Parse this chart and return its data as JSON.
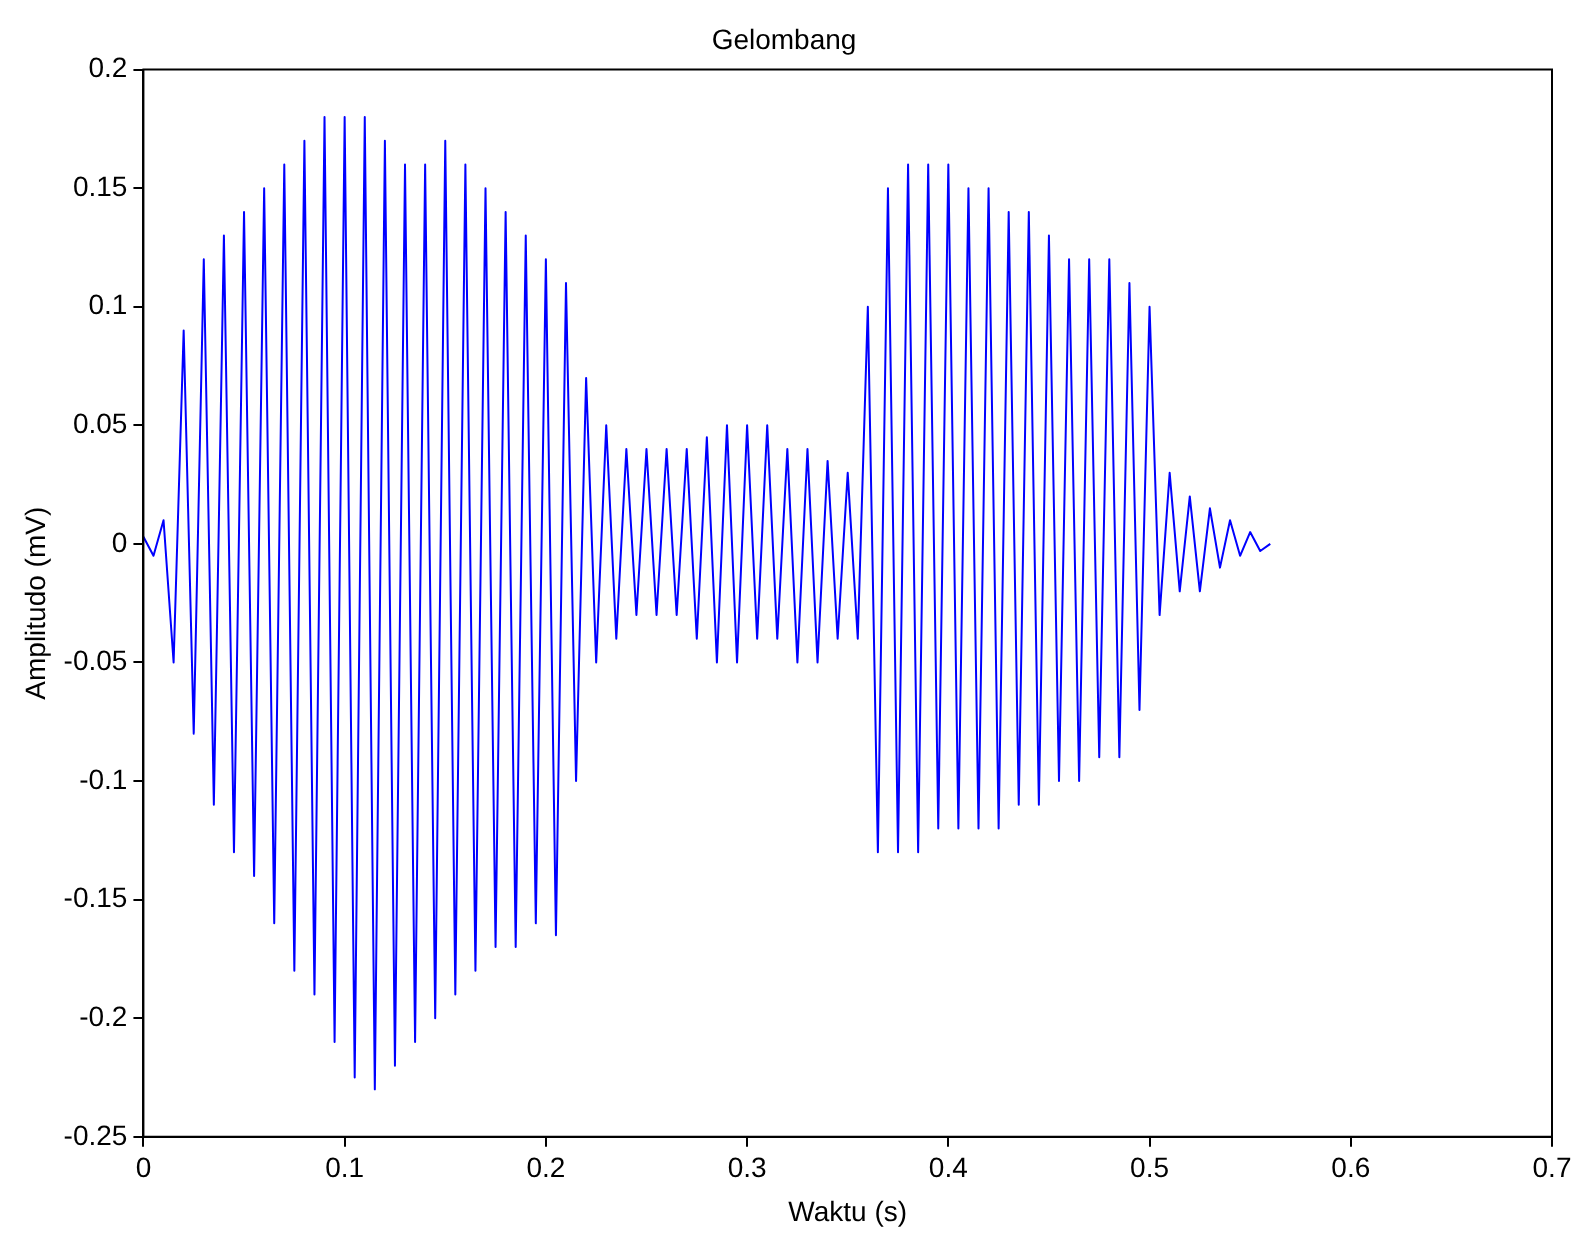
{
  "chart_data": {
    "type": "line",
    "title": "Gelombang",
    "xlabel": "Waktu (s)",
    "ylabel": "Amplitudo (mV)",
    "xlim": [
      0,
      0.7
    ],
    "xticks": [
      0,
      0.1,
      0.2,
      0.3,
      0.4,
      0.5,
      0.6,
      0.7
    ],
    "ylim": [
      -0.25,
      0.2
    ],
    "yticks": [
      -0.25,
      -0.2,
      -0.15,
      -0.1,
      -0.05,
      0,
      0.05,
      0.1,
      0.15,
      0.2
    ],
    "grid": false,
    "legend": false,
    "marker": "none",
    "line_style": "solid",
    "series": [
      {
        "color": "#0000ff",
        "x": [
          0,
          0.005,
          0.01,
          0.015,
          0.02,
          0.025,
          0.03,
          0.035,
          0.04,
          0.045,
          0.05,
          0.055,
          0.06,
          0.065,
          0.07,
          0.075,
          0.08,
          0.085,
          0.09,
          0.095,
          0.1,
          0.105,
          0.11,
          0.115,
          0.12,
          0.125,
          0.13,
          0.135,
          0.14,
          0.145,
          0.15,
          0.155,
          0.16,
          0.165,
          0.17,
          0.175,
          0.18,
          0.185,
          0.19,
          0.195,
          0.2,
          0.205,
          0.21,
          0.215,
          0.22,
          0.225,
          0.23,
          0.235,
          0.24,
          0.245,
          0.25,
          0.255,
          0.26,
          0.265,
          0.27,
          0.275,
          0.28,
          0.285,
          0.29,
          0.295,
          0.3,
          0.305,
          0.31,
          0.315,
          0.32,
          0.325,
          0.33,
          0.335,
          0.34,
          0.345,
          0.35,
          0.355,
          0.36,
          0.365,
          0.37,
          0.375,
          0.38,
          0.385,
          0.39,
          0.395,
          0.4,
          0.405,
          0.41,
          0.415,
          0.42,
          0.425,
          0.43,
          0.435,
          0.44,
          0.445,
          0.45,
          0.455,
          0.46,
          0.465,
          0.47,
          0.475,
          0.48,
          0.485,
          0.49,
          0.495,
          0.5,
          0.505,
          0.51,
          0.515,
          0.52,
          0.525,
          0.53,
          0.535,
          0.54,
          0.545,
          0.55,
          0.555,
          0.56
        ],
        "values": [
          0.003,
          -0.005,
          0.01,
          -0.05,
          0.09,
          -0.08,
          0.12,
          -0.11,
          0.13,
          -0.13,
          0.14,
          -0.14,
          0.15,
          -0.16,
          0.16,
          -0.18,
          0.17,
          -0.19,
          0.18,
          -0.21,
          0.18,
          -0.225,
          0.18,
          -0.23,
          0.17,
          -0.22,
          0.16,
          -0.21,
          0.16,
          -0.2,
          0.17,
          -0.19,
          0.16,
          -0.18,
          0.15,
          -0.17,
          0.14,
          -0.17,
          0.13,
          -0.16,
          0.12,
          -0.165,
          0.11,
          -0.1,
          0.07,
          -0.05,
          0.05,
          -0.04,
          0.04,
          -0.03,
          0.04,
          -0.03,
          0.04,
          -0.03,
          0.04,
          -0.04,
          0.045,
          -0.05,
          0.05,
          -0.05,
          0.05,
          -0.04,
          0.05,
          -0.04,
          0.04,
          -0.05,
          0.04,
          -0.05,
          0.035,
          -0.04,
          0.03,
          -0.04,
          0.1,
          -0.13,
          0.15,
          -0.13,
          0.16,
          -0.13,
          0.16,
          -0.12,
          0.16,
          -0.12,
          0.15,
          -0.12,
          0.15,
          -0.12,
          0.14,
          -0.11,
          0.14,
          -0.11,
          0.13,
          -0.1,
          0.12,
          -0.1,
          0.12,
          -0.09,
          0.12,
          -0.09,
          0.11,
          -0.07,
          0.1,
          -0.03,
          0.03,
          -0.02,
          0.02,
          -0.02,
          0.015,
          -0.01,
          0.01,
          -0.005,
          0.005,
          -0.003,
          0
        ]
      }
    ]
  }
}
